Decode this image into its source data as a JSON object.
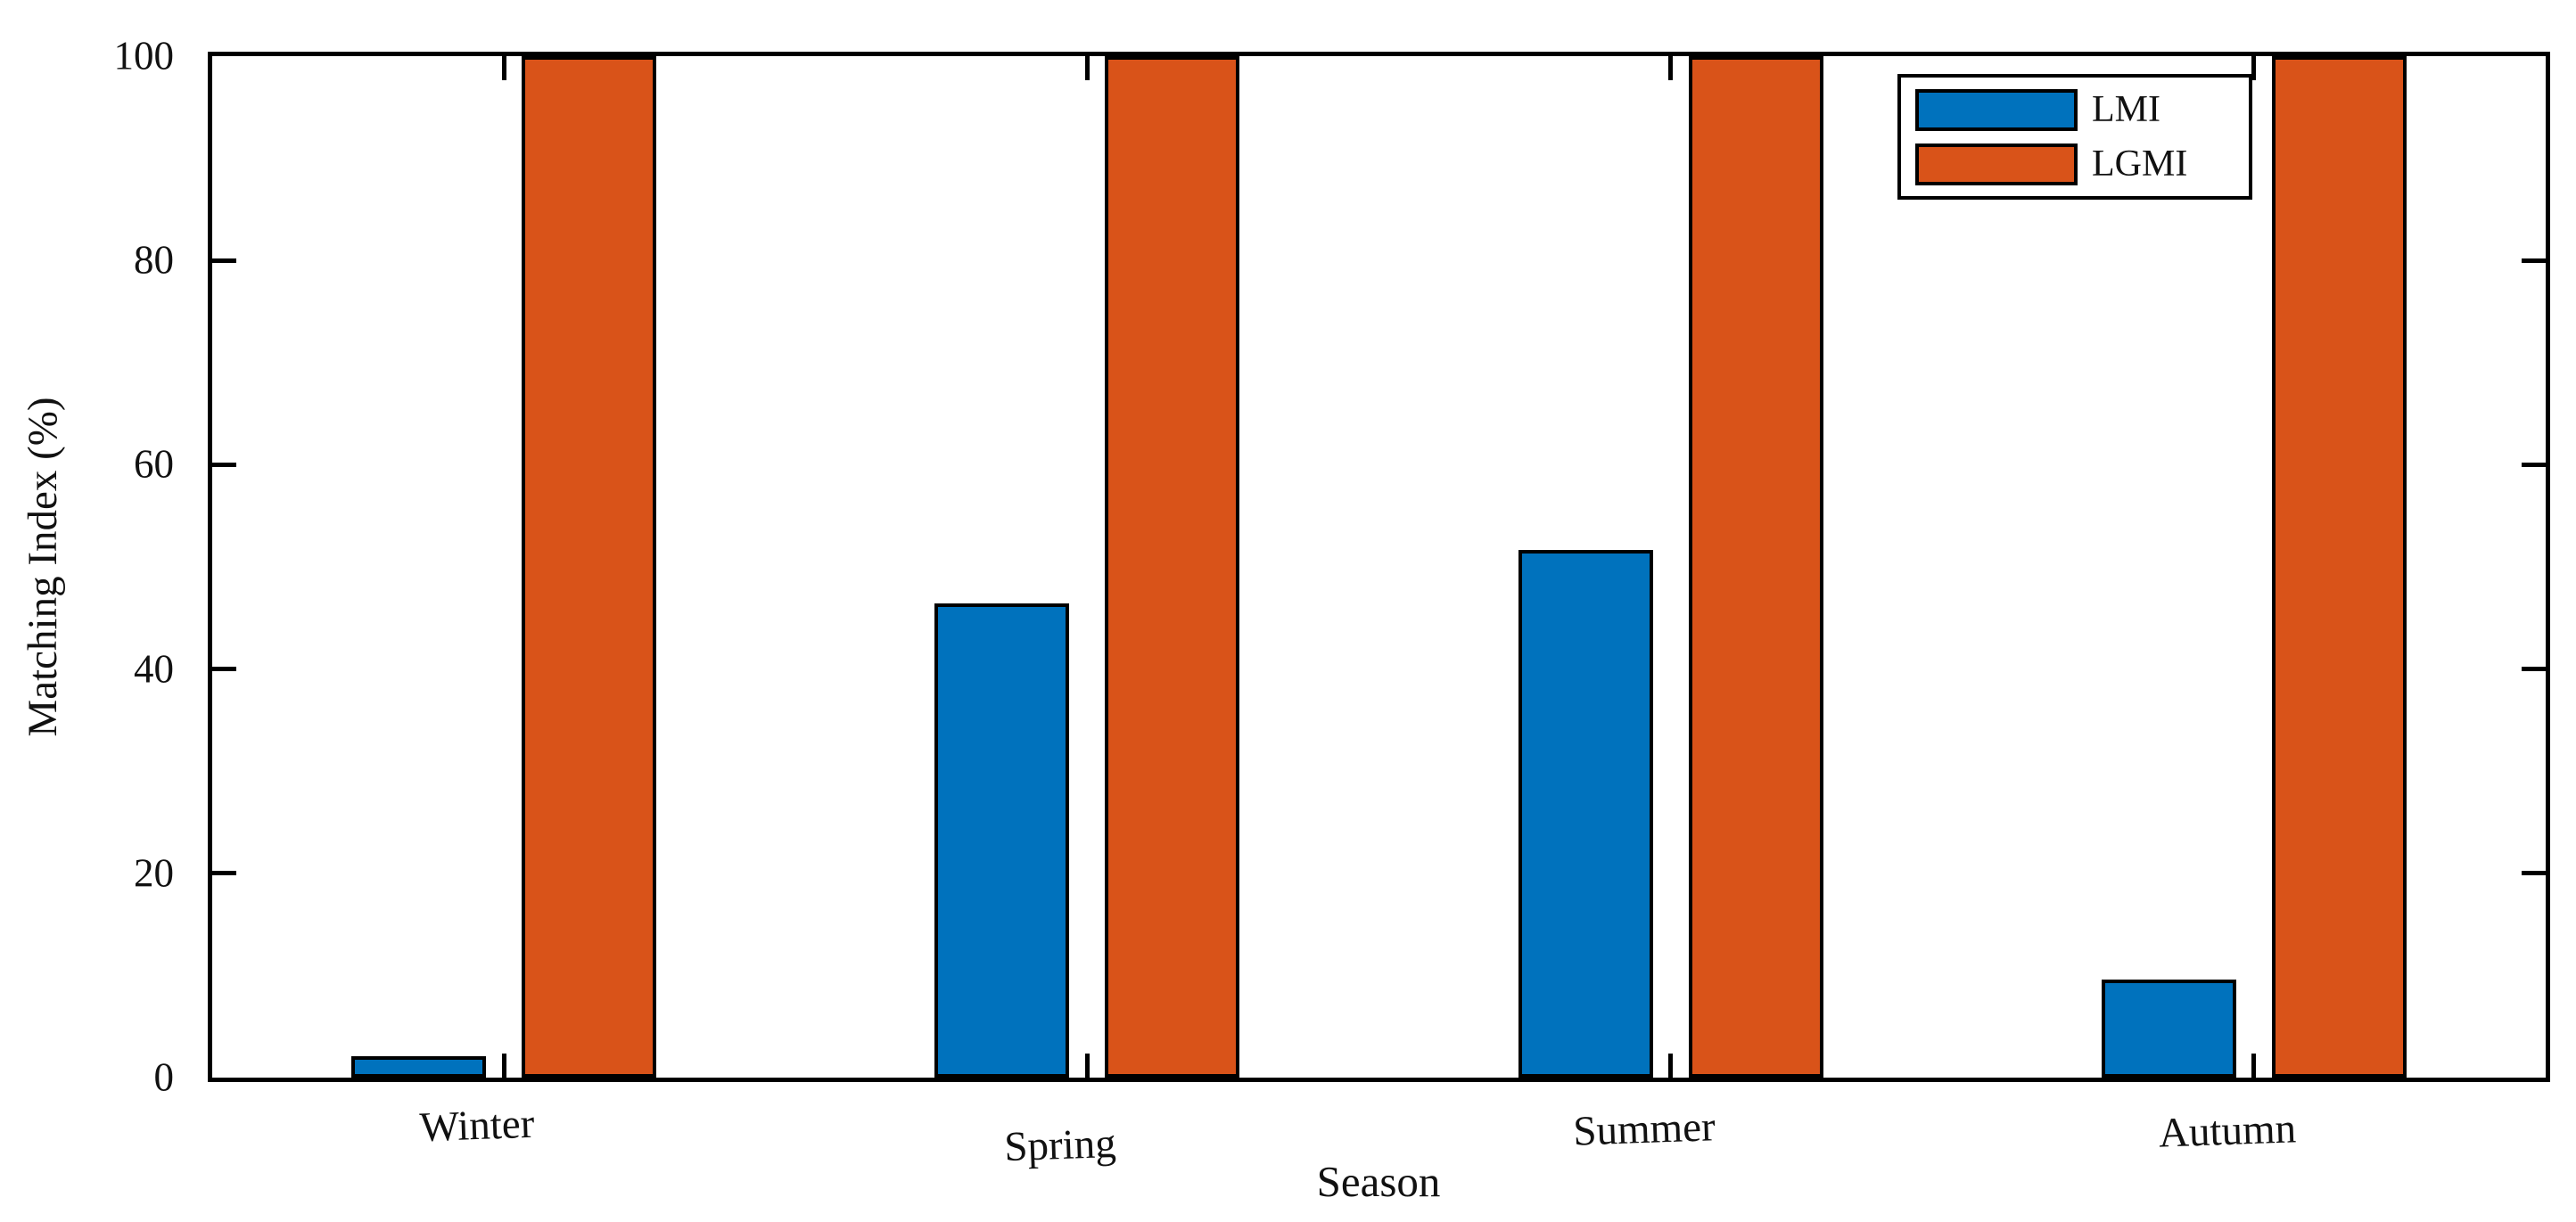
{
  "chart_data": {
    "type": "bar",
    "title": "",
    "categories": [
      "Winter",
      "Spring",
      "Summer",
      "Autumn"
    ],
    "series": [
      {
        "name": "LMI",
        "color": "#0072BD",
        "values": [
          2.1,
          46.4,
          51.7,
          9.6
        ]
      },
      {
        "name": "LGMI",
        "color": "#D95319",
        "values": [
          100,
          100,
          100,
          100
        ]
      }
    ],
    "xlabel": "Season",
    "ylabel": "Matching Index (%)",
    "ylim": [
      0,
      100
    ],
    "yticks": [
      0,
      20,
      40,
      60,
      80,
      100
    ],
    "grid": false,
    "legend_position": "top-right",
    "bar_edge_color": "#000000",
    "axis_color": "#000000",
    "background_color": "#FFFFFF"
  }
}
